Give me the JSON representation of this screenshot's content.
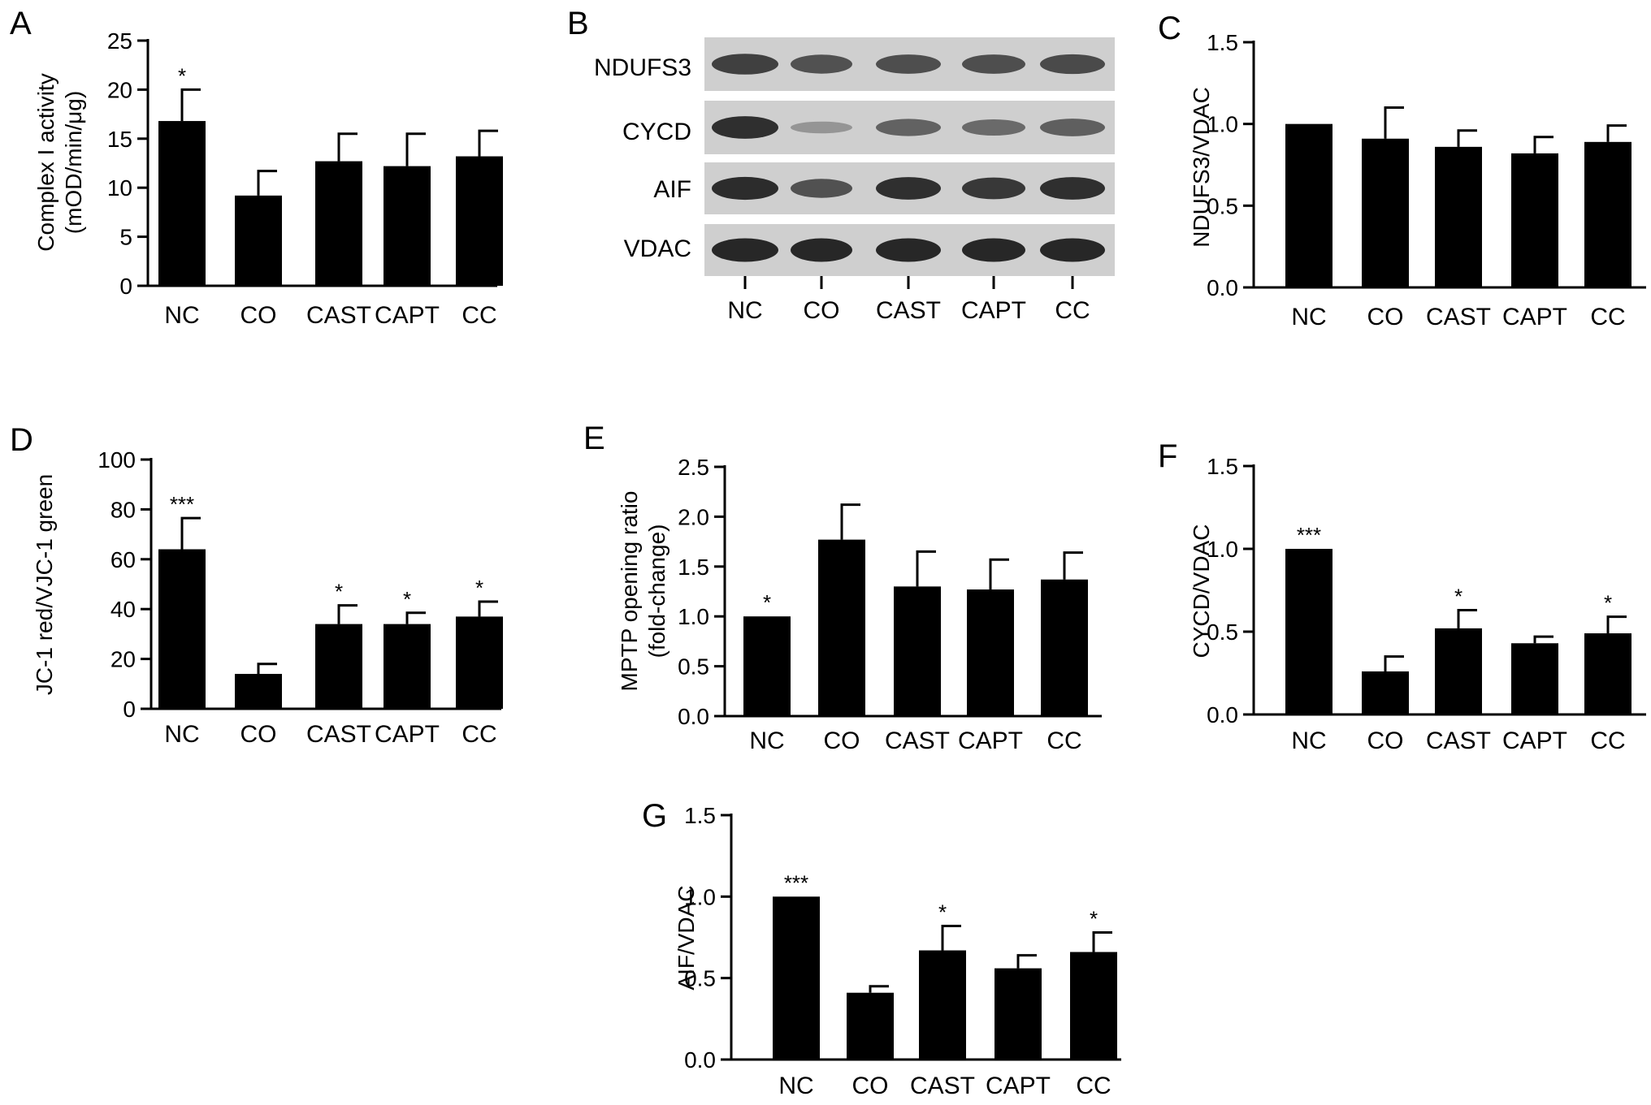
{
  "figure": {
    "panels": [
      "A",
      "B",
      "C",
      "D",
      "E",
      "F",
      "G"
    ]
  },
  "chart_data": [
    {
      "id": "A",
      "type": "bar",
      "panel_label": "A",
      "ylabel": [
        "Complex I activity",
        "(mOD/min/μg)"
      ],
      "categories": [
        "NC",
        "CO",
        "CAST",
        "CAPT",
        "CC"
      ],
      "values": [
        16.8,
        9.2,
        12.7,
        12.2,
        13.2
      ],
      "errors": [
        3.2,
        2.5,
        2.8,
        3.3,
        2.6
      ],
      "significance": [
        "*",
        "",
        "",
        "",
        ""
      ],
      "ylim": [
        0,
        25
      ],
      "yticks": [
        0,
        5,
        10,
        15,
        20,
        25
      ],
      "ytick_labels": [
        "0",
        "5",
        "10",
        "15",
        "20",
        "25"
      ]
    },
    {
      "id": "C",
      "type": "bar",
      "panel_label": "C",
      "ylabel": [
        "NDUFS3/VDAC"
      ],
      "categories": [
        "NC",
        "CO",
        "CAST",
        "CAPT",
        "CC"
      ],
      "values": [
        1.0,
        0.91,
        0.86,
        0.82,
        0.89
      ],
      "errors": [
        0,
        0.19,
        0.1,
        0.1,
        0.1
      ],
      "significance": [
        "",
        "",
        "",
        "",
        ""
      ],
      "ylim": [
        0,
        1.5
      ],
      "yticks": [
        0,
        0.5,
        1.0,
        1.5
      ],
      "ytick_labels": [
        "0.0",
        "0.5",
        "1.0",
        "1.5"
      ]
    },
    {
      "id": "D",
      "type": "bar",
      "panel_label": "D",
      "ylabel": [
        "JC-1 red/VJC-1 green"
      ],
      "categories": [
        "NC",
        "CO",
        "CAST",
        "CAPT",
        "CC"
      ],
      "values": [
        64,
        14,
        34,
        34,
        37
      ],
      "errors": [
        12.5,
        4,
        7.5,
        4.5,
        6
      ],
      "significance": [
        "***",
        "",
        "*",
        "*",
        "*"
      ],
      "ylim": [
        0,
        100
      ],
      "yticks": [
        0,
        20,
        40,
        60,
        80,
        100
      ],
      "ytick_labels": [
        "0",
        "20",
        "40",
        "60",
        "80",
        "100"
      ]
    },
    {
      "id": "E",
      "type": "bar",
      "panel_label": "E",
      "ylabel": [
        "MPTP opening ratio",
        "(fold-change)"
      ],
      "categories": [
        "NC",
        "CO",
        "CAST",
        "CAPT",
        "CC"
      ],
      "values": [
        1.0,
        1.77,
        1.3,
        1.27,
        1.37
      ],
      "errors": [
        0,
        0.35,
        0.35,
        0.3,
        0.27
      ],
      "significance": [
        "*",
        "",
        "",
        "",
        ""
      ],
      "ylim": [
        0,
        2.5
      ],
      "yticks": [
        0,
        0.5,
        1.0,
        1.5,
        2.0,
        2.5
      ],
      "ytick_labels": [
        "0.0",
        "0.5",
        "1.0",
        "1.5",
        "2.0",
        "2.5"
      ]
    },
    {
      "id": "F",
      "type": "bar",
      "panel_label": "F",
      "ylabel": [
        "CYCD/VDAC"
      ],
      "categories": [
        "NC",
        "CO",
        "CAST",
        "CAPT",
        "CC"
      ],
      "values": [
        1.0,
        0.26,
        0.52,
        0.43,
        0.49
      ],
      "errors": [
        0,
        0.09,
        0.11,
        0.04,
        0.1
      ],
      "significance": [
        "***",
        "",
        "*",
        "",
        "*"
      ],
      "ylim": [
        0,
        1.5
      ],
      "yticks": [
        0,
        0.5,
        1.0,
        1.5
      ],
      "ytick_labels": [
        "0.0",
        "0.5",
        "1.0",
        "1.5"
      ]
    },
    {
      "id": "G",
      "type": "bar",
      "panel_label": "G",
      "ylabel": [
        "AIF/VDAC"
      ],
      "categories": [
        "NC",
        "CO",
        "CAST",
        "CAPT",
        "CC"
      ],
      "values": [
        1.0,
        0.41,
        0.67,
        0.56,
        0.66
      ],
      "errors": [
        0,
        0.04,
        0.15,
        0.08,
        0.12
      ],
      "significance": [
        "***",
        "",
        "*",
        "",
        "*"
      ],
      "ylim": [
        0,
        1.5
      ],
      "yticks": [
        0,
        0.5,
        1.0,
        1.5
      ],
      "ytick_labels": [
        "0.0",
        "0.5",
        "1.0",
        "1.5"
      ]
    }
  ],
  "western_blot": {
    "panel_label": "B",
    "proteins": [
      "NDUFS3",
      "CYCD",
      "AIF",
      "VDAC"
    ],
    "lanes": [
      "NC",
      "CO",
      "CAST",
      "CAPT",
      "CC"
    ],
    "band_intensity": [
      [
        0.8,
        0.7,
        0.72,
        0.72,
        0.74
      ],
      [
        0.9,
        0.3,
        0.6,
        0.55,
        0.62
      ],
      [
        0.92,
        0.7,
        0.9,
        0.85,
        0.9
      ],
      [
        0.95,
        0.95,
        0.95,
        0.95,
        0.95
      ]
    ]
  }
}
